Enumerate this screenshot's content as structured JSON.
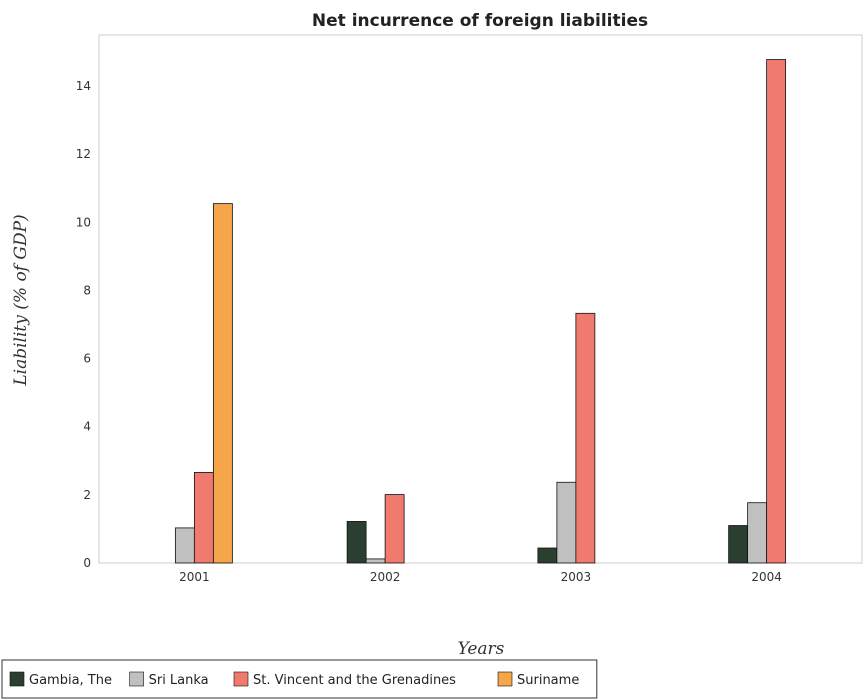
{
  "chart_data": {
    "type": "bar",
    "title": "Net incurrence of foreign liabilities",
    "xlabel": "Years",
    "ylabel": "Liability (% of GDP)",
    "categories": [
      "2001",
      "2002",
      "2003",
      "2004"
    ],
    "ylim": [
      0,
      15.5
    ],
    "yticks": [
      0,
      2,
      4,
      6,
      8,
      10,
      12,
      14
    ],
    "grid": true,
    "legend_position": "bottom-left",
    "series": [
      {
        "name": "Gambia, The",
        "color": "#2b3f30",
        "values": [
          0,
          1.22,
          0.44,
          1.1
        ]
      },
      {
        "name": "Sri Lanka",
        "color": "#c0c0c0",
        "values": [
          1.03,
          0.12,
          2.37,
          1.77
        ]
      },
      {
        "name": "St. Vincent and the Grenadines",
        "color": "#f07a6e",
        "values": [
          2.66,
          2.01,
          7.33,
          14.78
        ]
      },
      {
        "name": "Suriname",
        "color": "#f5a54a",
        "values": [
          10.55,
          0,
          0,
          0
        ]
      }
    ]
  }
}
